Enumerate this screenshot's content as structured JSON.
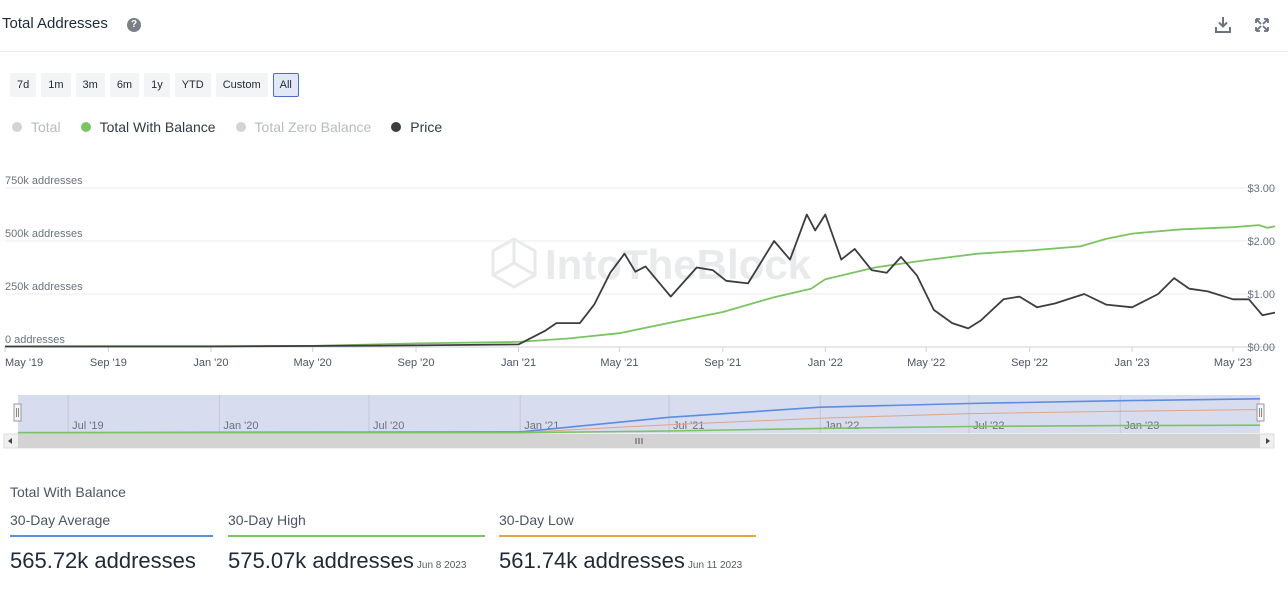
{
  "header": {
    "title": "Total Addresses"
  },
  "ranges": [
    "7d",
    "1m",
    "3m",
    "6m",
    "1y",
    "YTD",
    "Custom",
    "All"
  ],
  "active_range": "All",
  "legend": [
    {
      "label": "Total",
      "color": "#d1d3d8",
      "active": false
    },
    {
      "label": "Total With Balance",
      "color": "#7bc462",
      "active": true
    },
    {
      "label": "Total Zero Balance",
      "color": "#d1d3d8",
      "active": false
    },
    {
      "label": "Price",
      "color": "#3c3d40",
      "active": true
    }
  ],
  "watermark": "IntoTheBlock",
  "chart_data": {
    "type": "line",
    "x_ticks": [
      "May '19",
      "Sep '19",
      "Jan '20",
      "May '20",
      "Sep '20",
      "Jan '21",
      "May '21",
      "Sep '21",
      "Jan '22",
      "May '22",
      "Sep '22",
      "Jan '23",
      "May '23"
    ],
    "y_left_ticks": [
      "0 addresses",
      "250k addresses",
      "500k addresses",
      "750k addresses"
    ],
    "y_right_ticks": [
      "$0.00",
      "$1.00",
      "$2.00",
      "$3.00"
    ],
    "y_left_range": [
      0,
      750000
    ],
    "y_right_range": [
      0,
      3
    ],
    "grid": true,
    "series": [
      {
        "name": "Total With Balance",
        "axis": "left",
        "color": "#7bc462",
        "points": [
          [
            "2019-05-01",
            3000
          ],
          [
            "2019-09-01",
            4000
          ],
          [
            "2020-01-01",
            4000
          ],
          [
            "2020-05-01",
            5000
          ],
          [
            "2020-09-01",
            17000
          ],
          [
            "2021-01-01",
            24000
          ],
          [
            "2021-03-01",
            40000
          ],
          [
            "2021-05-01",
            65000
          ],
          [
            "2021-07-01",
            115000
          ],
          [
            "2021-09-01",
            165000
          ],
          [
            "2021-11-01",
            235000
          ],
          [
            "2021-12-15",
            275000
          ],
          [
            "2022-01-01",
            320000
          ],
          [
            "2022-03-01",
            375000
          ],
          [
            "2022-05-01",
            410000
          ],
          [
            "2022-07-01",
            440000
          ],
          [
            "2022-09-01",
            455000
          ],
          [
            "2022-11-01",
            475000
          ],
          [
            "2022-12-01",
            510000
          ],
          [
            "2023-01-01",
            535000
          ],
          [
            "2023-03-01",
            555000
          ],
          [
            "2023-05-01",
            565000
          ],
          [
            "2023-06-01",
            575000
          ],
          [
            "2023-06-11",
            562000
          ],
          [
            "2023-06-20",
            570000
          ]
        ]
      },
      {
        "name": "Price",
        "axis": "right",
        "color": "#3c3d40",
        "points": [
          [
            "2019-05-01",
            0.01
          ],
          [
            "2020-01-01",
            0.01
          ],
          [
            "2020-09-01",
            0.03
          ],
          [
            "2021-01-01",
            0.05
          ],
          [
            "2021-02-01",
            0.3
          ],
          [
            "2021-02-15",
            0.45
          ],
          [
            "2021-03-15",
            0.45
          ],
          [
            "2021-04-01",
            0.8
          ],
          [
            "2021-04-20",
            1.4
          ],
          [
            "2021-05-07",
            1.76
          ],
          [
            "2021-05-20",
            1.42
          ],
          [
            "2021-06-01",
            1.52
          ],
          [
            "2021-07-01",
            0.95
          ],
          [
            "2021-08-01",
            1.5
          ],
          [
            "2021-08-20",
            1.45
          ],
          [
            "2021-09-05",
            1.25
          ],
          [
            "2021-10-01",
            1.2
          ],
          [
            "2021-11-01",
            2.0
          ],
          [
            "2021-11-20",
            1.65
          ],
          [
            "2021-12-10",
            2.5
          ],
          [
            "2021-12-20",
            2.2
          ],
          [
            "2022-01-01",
            2.5
          ],
          [
            "2022-01-20",
            1.65
          ],
          [
            "2022-02-05",
            1.85
          ],
          [
            "2022-02-25",
            1.45
          ],
          [
            "2022-03-15",
            1.4
          ],
          [
            "2022-04-01",
            1.7
          ],
          [
            "2022-04-20",
            1.35
          ],
          [
            "2022-05-10",
            0.7
          ],
          [
            "2022-06-01",
            0.45
          ],
          [
            "2022-06-20",
            0.35
          ],
          [
            "2022-07-05",
            0.5
          ],
          [
            "2022-08-01",
            0.9
          ],
          [
            "2022-08-20",
            0.95
          ],
          [
            "2022-09-10",
            0.75
          ],
          [
            "2022-10-01",
            0.82
          ],
          [
            "2022-11-05",
            1.0
          ],
          [
            "2022-12-01",
            0.8
          ],
          [
            "2023-01-01",
            0.75
          ],
          [
            "2023-02-01",
            1.0
          ],
          [
            "2023-02-20",
            1.3
          ],
          [
            "2023-03-10",
            1.1
          ],
          [
            "2023-04-01",
            1.05
          ],
          [
            "2023-05-01",
            0.9
          ],
          [
            "2023-05-20",
            0.9
          ],
          [
            "2023-06-05",
            0.6
          ],
          [
            "2023-06-20",
            0.65
          ]
        ]
      }
    ],
    "navigator": {
      "x_ticks": [
        "Jul '19",
        "Jan '20",
        "Jul '20",
        "Jan '21",
        "Jul '21",
        "Jan '22",
        "Jul '22",
        "Jan '23"
      ],
      "series": [
        {
          "color": "#5b8de1",
          "points": [
            [
              "2019-05-01",
              3000
            ],
            [
              "2021-01-01",
              12000
            ],
            [
              "2021-07-01",
              170000
            ],
            [
              "2022-01-01",
              280000
            ],
            [
              "2022-07-01",
              320000
            ],
            [
              "2023-01-01",
              350000
            ],
            [
              "2023-06-20",
              370000
            ]
          ]
        },
        {
          "color": "#e4a37f",
          "points": [
            [
              "2019-05-01",
              1000
            ],
            [
              "2021-01-01",
              5000
            ],
            [
              "2021-07-01",
              90000
            ],
            [
              "2022-01-01",
              160000
            ],
            [
              "2022-07-01",
              210000
            ],
            [
              "2023-01-01",
              235000
            ],
            [
              "2023-06-20",
              255000
            ]
          ]
        },
        {
          "color": "#7bc462",
          "points": [
            [
              "2019-05-01",
              1000
            ],
            [
              "2021-01-01",
              3000
            ],
            [
              "2021-07-01",
              22000
            ],
            [
              "2022-01-01",
              50000
            ],
            [
              "2022-07-01",
              70000
            ],
            [
              "2023-01-01",
              80000
            ],
            [
              "2023-06-20",
              85000
            ]
          ]
        }
      ]
    }
  },
  "stats": {
    "title": "Total With Balance",
    "items": [
      {
        "label": "30-Day Average",
        "value": "565.72k addresses",
        "date": "",
        "color": "#5b8de1"
      },
      {
        "label": "30-Day High",
        "value": "575.07k addresses",
        "date": "Jun 8 2023",
        "color": "#7bc462"
      },
      {
        "label": "30-Day Low",
        "value": "561.74k addresses",
        "date": "Jun 11 2023",
        "color": "#e3a63c"
      }
    ]
  }
}
